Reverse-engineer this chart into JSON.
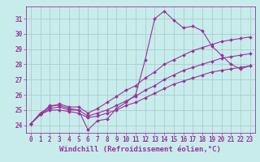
{
  "xlabel": "Windchill (Refroidissement éolien,°C)",
  "background_color": "#c8ecec",
  "line_color": "#993399",
  "grid_color": "#aacccc",
  "xlim": [
    -0.5,
    23.5
  ],
  "ylim": [
    23.5,
    31.8
  ],
  "xticks": [
    0,
    1,
    2,
    3,
    4,
    5,
    6,
    7,
    8,
    9,
    10,
    11,
    12,
    13,
    14,
    15,
    16,
    17,
    18,
    19,
    20,
    21,
    22,
    23
  ],
  "yticks": [
    24,
    25,
    26,
    27,
    28,
    29,
    30,
    31
  ],
  "line1_x": [
    0,
    1,
    2,
    3,
    4,
    5,
    6,
    7,
    8,
    9,
    10,
    11,
    12,
    13,
    14,
    15,
    16,
    17,
    18,
    19,
    20,
    21,
    22,
    23
  ],
  "line1_y": [
    24.1,
    24.7,
    25.3,
    25.3,
    25.1,
    25.0,
    23.7,
    24.3,
    24.4,
    25.1,
    25.5,
    26.0,
    28.3,
    31.0,
    31.5,
    30.9,
    30.4,
    30.5,
    30.2,
    29.2,
    28.6,
    28.0,
    27.7,
    27.9
  ],
  "line2_x": [
    0,
    1,
    2,
    3,
    4,
    5,
    6,
    7,
    8,
    9,
    10,
    11,
    12,
    13,
    14,
    15,
    16,
    17,
    18,
    19,
    20,
    21,
    22,
    23
  ],
  "line2_y": [
    24.1,
    24.8,
    25.2,
    25.4,
    25.2,
    25.2,
    24.8,
    25.1,
    25.5,
    25.9,
    26.3,
    26.6,
    27.1,
    27.5,
    28.0,
    28.3,
    28.6,
    28.9,
    29.1,
    29.3,
    29.5,
    29.6,
    29.7,
    29.8
  ],
  "line3_x": [
    0,
    1,
    2,
    3,
    4,
    5,
    6,
    7,
    8,
    9,
    10,
    11,
    12,
    13,
    14,
    15,
    16,
    17,
    18,
    19,
    20,
    21,
    22,
    23
  ],
  "line3_y": [
    24.1,
    24.7,
    25.1,
    25.2,
    25.0,
    25.0,
    24.6,
    24.8,
    25.0,
    25.3,
    25.6,
    25.9,
    26.3,
    26.6,
    27.0,
    27.3,
    27.6,
    27.8,
    28.0,
    28.2,
    28.4,
    28.5,
    28.6,
    28.7
  ],
  "line4_x": [
    0,
    1,
    2,
    3,
    4,
    5,
    6,
    7,
    8,
    9,
    10,
    11,
    12,
    13,
    14,
    15,
    16,
    17,
    18,
    19,
    20,
    21,
    22,
    23
  ],
  "line4_y": [
    24.1,
    24.7,
    25.0,
    25.0,
    24.9,
    24.8,
    24.5,
    24.6,
    24.8,
    25.0,
    25.3,
    25.5,
    25.8,
    26.1,
    26.4,
    26.7,
    26.9,
    27.1,
    27.3,
    27.5,
    27.6,
    27.7,
    27.8,
    27.9
  ],
  "markersize": 2.0,
  "linewidth": 0.8,
  "xlabel_fontsize": 6.5,
  "tick_fontsize": 5.5
}
